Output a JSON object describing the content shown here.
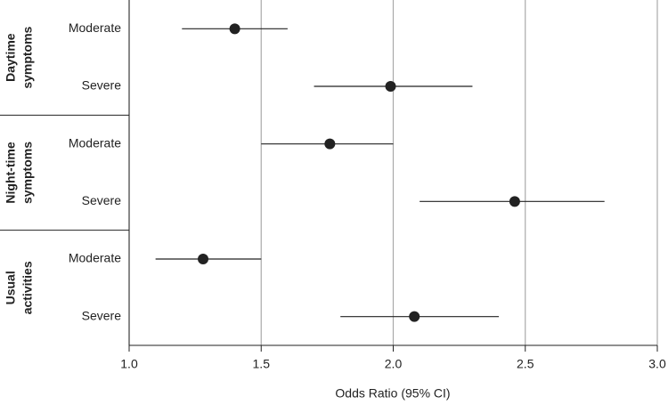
{
  "chart_data": {
    "type": "forest",
    "x_label": "Odds Ratio (95% CI)",
    "xlim": [
      1,
      3
    ],
    "xticks": [
      {
        "value": 1,
        "label": "1.0"
      },
      1.5,
      {
        "value": 2,
        "label": "2.0"
      },
      2.5,
      {
        "value": 3,
        "label": "3.0"
      }
    ],
    "grid": true,
    "color": "#222222",
    "groups": [
      {
        "label_lines": [
          "Daytime",
          "symptoms"
        ],
        "categories": [
          "Moderate",
          "Severe"
        ],
        "values": [
          1.4,
          1.99
        ],
        "lower": [
          1.2,
          1.7
        ],
        "upper": [
          1.6,
          2.3
        ]
      },
      {
        "label_lines": [
          "Night-time",
          "symptoms"
        ],
        "categories": [
          "Moderate",
          "Severe"
        ],
        "values": [
          1.76,
          2.46
        ],
        "lower": [
          1.5,
          2.1
        ],
        "upper": [
          2.0,
          2.8
        ]
      },
      {
        "label_lines": [
          "Usual",
          "activities"
        ],
        "categories": [
          "Moderate",
          "Severe"
        ],
        "values": [
          1.28,
          2.08
        ],
        "lower": [
          1.1,
          1.8
        ],
        "upper": [
          1.5,
          2.4
        ]
      }
    ]
  }
}
